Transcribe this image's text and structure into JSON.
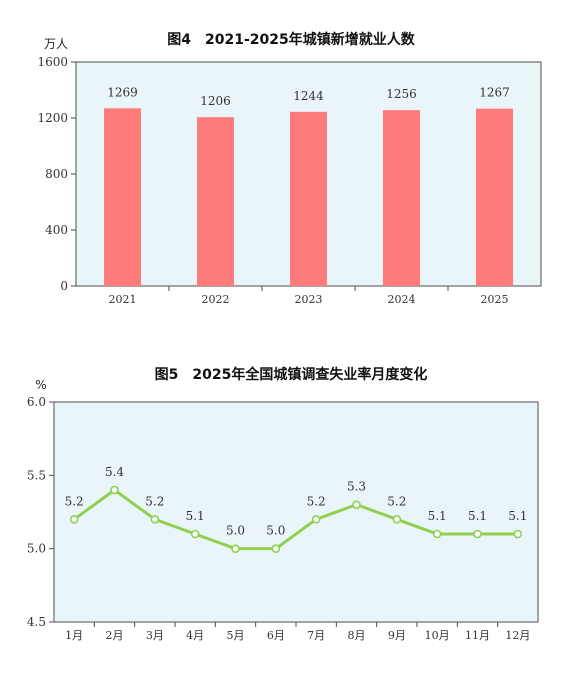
{
  "chart_data": [
    {
      "type": "bar",
      "title": "图4　2021-2025年城镇新增就业人数",
      "unit_label": "万人",
      "categories": [
        "2021",
        "2022",
        "2023",
        "2024",
        "2025"
      ],
      "values": [
        1269,
        1206,
        1244,
        1256,
        1267
      ],
      "value_labels": [
        "1269",
        "1206",
        "1244",
        "1256",
        "1267"
      ],
      "ylim": [
        0,
        1600
      ],
      "yticks": [
        0,
        400,
        800,
        1200,
        1600
      ],
      "ytick_labels": [
        "0",
        "400",
        "800",
        "1200",
        "1600"
      ],
      "bar_color": "#ff7b7b",
      "plot_bg": "#eaf5fa",
      "grid": false
    },
    {
      "type": "line",
      "title": "图5　2025年全国城镇调查失业率月度变化",
      "unit_label": "%",
      "categories": [
        "1月",
        "2月",
        "3月",
        "4月",
        "5月",
        "6月",
        "7月",
        "8月",
        "9月",
        "10月",
        "11月",
        "12月"
      ],
      "values": [
        5.2,
        5.4,
        5.2,
        5.1,
        5.0,
        5.0,
        5.2,
        5.3,
        5.2,
        5.1,
        5.1,
        5.1
      ],
      "value_labels": [
        "5.2",
        "5.4",
        "5.2",
        "5.1",
        "5.0",
        "5.0",
        "5.2",
        "5.3",
        "5.2",
        "5.1",
        "5.1",
        "5.1"
      ],
      "ylim": [
        4.5,
        6.0
      ],
      "yticks": [
        4.5,
        5.0,
        5.5,
        6.0
      ],
      "ytick_labels": [
        "4.5",
        "5.0",
        "5.5",
        "6.0"
      ],
      "line_color": "#8fd14f",
      "plot_bg": "#eaf5fa",
      "grid": false
    }
  ]
}
